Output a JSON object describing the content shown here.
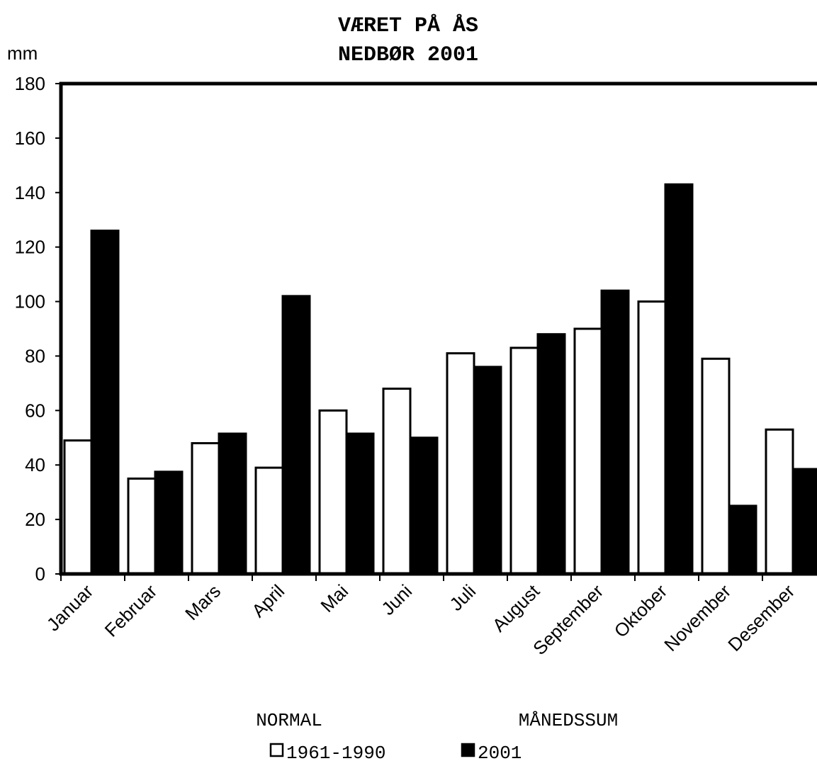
{
  "chart_data": {
    "type": "bar",
    "title_lines": [
      "VÆRET PÅ ÅS",
      "NEDBØR 2001"
    ],
    "ylabel": "mm",
    "xlabel": "",
    "ylim": [
      0,
      180
    ],
    "yticks": [
      0,
      20,
      40,
      60,
      80,
      100,
      120,
      140,
      160,
      180
    ],
    "categories": [
      "Januar",
      "Februar",
      "Mars",
      "April",
      "Mai",
      "Juni",
      "Juli",
      "August",
      "September",
      "Oktober",
      "November",
      "Desember"
    ],
    "series": [
      {
        "name": "1961-1990",
        "group_label": "NORMAL",
        "fill": "#ffffff",
        "stroke": "#000000",
        "values": [
          49,
          35,
          48,
          39,
          60,
          68,
          81,
          83,
          90,
          100,
          79,
          53
        ]
      },
      {
        "name": "2001",
        "group_label": "MÅNEDSSUM",
        "fill": "#000000",
        "stroke": "#000000",
        "values": [
          126,
          37.5,
          51.5,
          102,
          51.5,
          50,
          76,
          88,
          104,
          143,
          25,
          38.5
        ]
      }
    ],
    "grid": false,
    "legend_position": "bottom"
  }
}
